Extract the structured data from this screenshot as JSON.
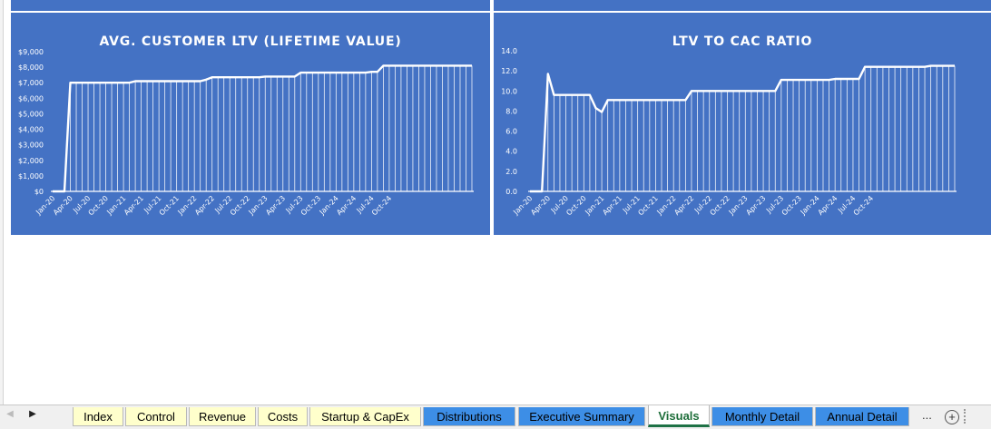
{
  "charts": [
    {
      "id": "ltv",
      "title": "AVG. CUSTOMER LTV (LIFETIME VALUE)",
      "chart_data": {
        "type": "line",
        "title": "AVG. CUSTOMER LTV (LIFETIME VALUE)",
        "xlabel": "",
        "ylabel": "",
        "ylim": [
          0,
          9000
        ],
        "yticks": [
          0,
          1000,
          2000,
          3000,
          4000,
          5000,
          6000,
          7000,
          8000,
          9000
        ],
        "ytick_labels": [
          "$0",
          "$1,000",
          "$2,000",
          "$3,000",
          "$4,000",
          "$5,000",
          "$6,000",
          "$7,000",
          "$8,000",
          "$9,000"
        ],
        "x_tick_labels": [
          "Jan-20",
          "Apr-20",
          "Jul-20",
          "Oct-20",
          "Jan-21",
          "Apr-21",
          "Jul-21",
          "Oct-21",
          "Jan-22",
          "Apr-22",
          "Jul-22",
          "Oct-22",
          "Jan-23",
          "Apr-23",
          "Jul-23",
          "Oct-23",
          "Jan-24",
          "Apr-24",
          "Jul-24",
          "Oct-24"
        ],
        "grid": false,
        "series_color": "#ffffff",
        "y": [
          0,
          0,
          0,
          7000,
          7000,
          7000,
          7000,
          7000,
          7000,
          7000,
          7000,
          7000,
          7000,
          7000,
          7100,
          7100,
          7100,
          7100,
          7100,
          7100,
          7100,
          7100,
          7100,
          7100,
          7100,
          7100,
          7200,
          7350,
          7350,
          7350,
          7350,
          7350,
          7350,
          7350,
          7350,
          7350,
          7400,
          7400,
          7400,
          7400,
          7400,
          7400,
          7650,
          7650,
          7650,
          7650,
          7650,
          7650,
          7650,
          7650,
          7650,
          7650,
          7650,
          7650,
          7700,
          7700,
          8100,
          8100,
          8100,
          8100,
          8100,
          8100,
          8100,
          8100,
          8100,
          8100,
          8100,
          8100,
          8100,
          8100,
          8100,
          8100
        ]
      }
    },
    {
      "id": "ltvcac",
      "title": "LTV TO CAC RATIO",
      "chart_data": {
        "type": "line",
        "title": "LTV TO CAC RATIO",
        "xlabel": "",
        "ylabel": "",
        "ylim": [
          0,
          14
        ],
        "yticks": [
          0,
          2,
          4,
          6,
          8,
          10,
          12,
          14
        ],
        "ytick_labels": [
          "0.0",
          "2.0",
          "4.0",
          "6.0",
          "8.0",
          "10.0",
          "12.0",
          "14.0"
        ],
        "x_tick_labels": [
          "Jan-20",
          "Apr-20",
          "Jul-20",
          "Oct-20",
          "Jan-21",
          "Apr-21",
          "Jul-21",
          "Oct-21",
          "Jan-22",
          "Apr-22",
          "Jul-22",
          "Oct-22",
          "Jan-23",
          "Apr-23",
          "Jul-23",
          "Oct-23",
          "Jan-24",
          "Apr-24",
          "Jul-24",
          "Oct-24"
        ],
        "grid": false,
        "series_color": "#ffffff",
        "y": [
          0,
          0,
          0,
          11.7,
          9.6,
          9.6,
          9.6,
          9.6,
          9.6,
          9.6,
          9.6,
          8.3,
          7.9,
          9.1,
          9.1,
          9.1,
          9.1,
          9.1,
          9.1,
          9.1,
          9.1,
          9.1,
          9.1,
          9.1,
          9.1,
          9.1,
          9.1,
          10.0,
          10.0,
          10.0,
          10.0,
          10.0,
          10.0,
          10.0,
          10.0,
          10.0,
          10.0,
          10.0,
          10.0,
          10.0,
          10.0,
          10.0,
          11.1,
          11.1,
          11.1,
          11.1,
          11.1,
          11.1,
          11.1,
          11.1,
          11.1,
          11.2,
          11.2,
          11.2,
          11.2,
          11.2,
          12.4,
          12.4,
          12.4,
          12.4,
          12.4,
          12.4,
          12.4,
          12.4,
          12.4,
          12.4,
          12.4,
          12.5,
          12.5,
          12.5,
          12.5,
          12.5
        ]
      }
    }
  ],
  "tabs": [
    {
      "label": "Index",
      "style": "yellow"
    },
    {
      "label": "Control",
      "style": "yellow"
    },
    {
      "label": "Revenue",
      "style": "yellow"
    },
    {
      "label": "Costs",
      "style": "yellow"
    },
    {
      "label": "Startup & CapEx",
      "style": "yellow"
    },
    {
      "label": "Distributions",
      "style": "blue"
    },
    {
      "label": "Executive Summary",
      "style": "blue"
    },
    {
      "label": "Visuals",
      "style": "active"
    },
    {
      "label": "Monthly Detail",
      "style": "blue"
    },
    {
      "label": "Annual Detail",
      "style": "blue"
    }
  ],
  "tabbar": {
    "more_label": "...",
    "add_label": "+",
    "nav_left_icon": "triangle-left-icon",
    "nav_right_icon": "triangle-right-icon"
  }
}
